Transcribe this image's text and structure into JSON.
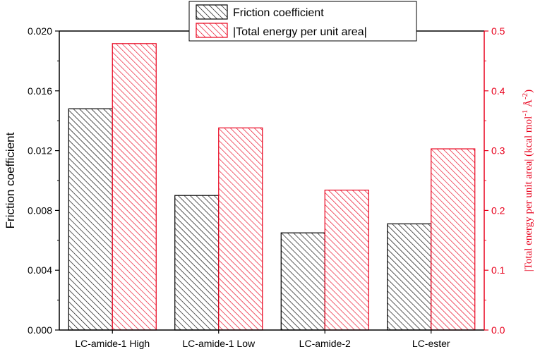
{
  "chart_data": {
    "type": "bar",
    "categories": [
      "LC-amide-1 High",
      "LC-amide-1 Low",
      "LC-amide-2",
      "LC-ester"
    ],
    "series": [
      {
        "name": "Friction coefficient",
        "axis": "left",
        "values": [
          0.0148,
          0.009,
          0.0065,
          0.0071
        ],
        "color": "#000000",
        "fill": "hatched"
      },
      {
        "name": "|Total energy per unit area|",
        "axis": "right",
        "values": [
          0.479,
          0.338,
          0.234,
          0.303
        ],
        "color": "#e8001c",
        "fill": "hatched"
      }
    ],
    "y_left": {
      "label": "Friction coefficient",
      "ylim": [
        0,
        0.02
      ],
      "ticks": [
        "0.000",
        "0.004",
        "0.008",
        "0.012",
        "0.016",
        "0.020"
      ]
    },
    "y_right": {
      "label_main": "|Total energy per unit area| (kcal mol",
      "label_sup1": "-1",
      "label_mid": " Å",
      "label_sup2": "-2",
      "label_end": ")",
      "ylim": [
        0,
        0.5
      ],
      "ticks": [
        "0.0",
        "0.1",
        "0.2",
        "0.3",
        "0.4",
        "0.5"
      ]
    },
    "legend_position": "top-center",
    "grid": false
  }
}
